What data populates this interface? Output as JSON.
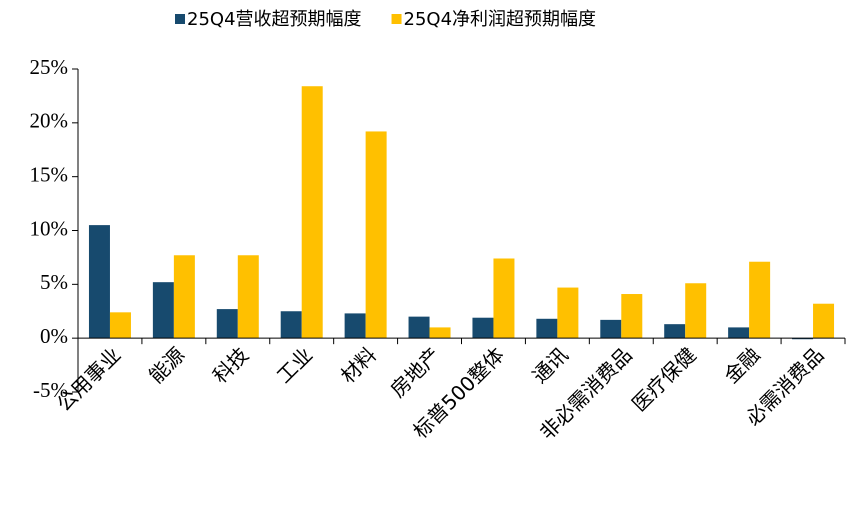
{
  "chart_data": {
    "type": "bar",
    "categories": [
      "公用事业",
      "能源",
      "科技",
      "工业",
      "材料",
      "房地产",
      "标普500整体",
      "通讯",
      "非必需消费品",
      "医疗保健",
      "金融",
      "必需消费品"
    ],
    "series": [
      {
        "name": "25Q4营收超预期幅度",
        "color": "#174a6e",
        "values": [
          10.5,
          5.2,
          2.7,
          2.5,
          2.3,
          2.0,
          1.9,
          1.8,
          1.7,
          1.3,
          1.0,
          -0.1
        ]
      },
      {
        "name": "25Q4净利润超预期幅度",
        "color": "#ffc000",
        "values": [
          2.4,
          7.7,
          7.7,
          23.4,
          19.2,
          1.0,
          7.4,
          4.7,
          4.1,
          5.1,
          7.1,
          3.2
        ]
      }
    ],
    "ylim": [
      -5,
      25
    ],
    "yticks": [
      {
        "value": -5,
        "label": "-5%"
      },
      {
        "value": 0,
        "label": "0%"
      },
      {
        "value": 5,
        "label": "5%"
      },
      {
        "value": 10,
        "label": "10%"
      },
      {
        "value": 15,
        "label": "15%"
      },
      {
        "value": 20,
        "label": "20%"
      },
      {
        "value": 25,
        "label": "25%"
      }
    ],
    "legend": "top"
  }
}
